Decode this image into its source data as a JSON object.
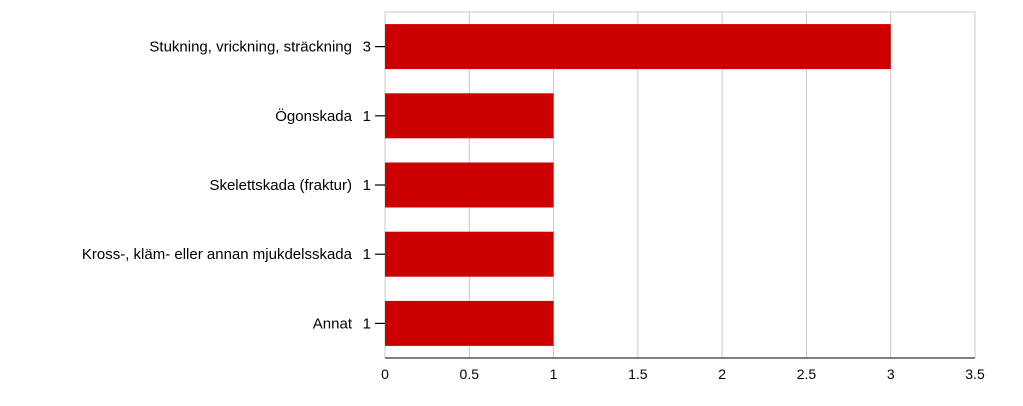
{
  "chart_data": {
    "type": "bar",
    "orientation": "horizontal",
    "categories": [
      "Stukning, vrickning, sträckning",
      "Ögonskada",
      "Skelettskada (fraktur)",
      "Kross-, kläm- eller annan mjukdelsskada",
      "Annat"
    ],
    "values": [
      3,
      1,
      1,
      1,
      1
    ],
    "value_labels": [
      "3",
      "1",
      "1",
      "1",
      "1"
    ],
    "xlim": [
      0,
      3.5
    ],
    "x_ticks": [
      "0",
      "0.5",
      "1",
      "1.5",
      "2",
      "2.5",
      "3",
      "3.5"
    ],
    "grid": true,
    "legend": "none",
    "title": "",
    "xlabel": "",
    "ylabel": "",
    "bar_color": "#cc0000",
    "grid_color": "#c8c8c8"
  }
}
